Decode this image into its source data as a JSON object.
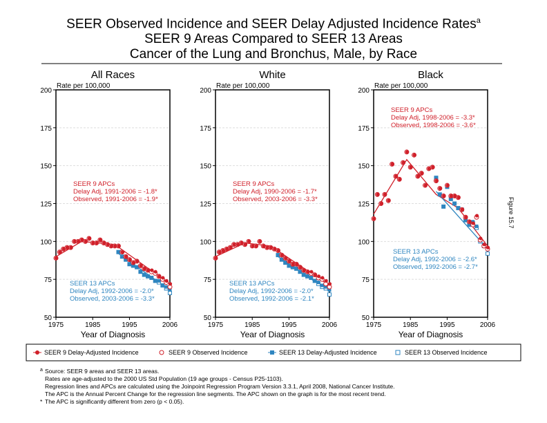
{
  "title": {
    "line1": "SEER Observed Incidence and SEER Delay Adjusted Incidence Rates",
    "sup": "a",
    "line2": "SEER 9 Areas Compared to SEER 13 Areas",
    "line3": "Cancer of the Lung and Bronchus, Male, by Race"
  },
  "figure_label": "Figure 15.7",
  "chart_data": [
    {
      "type": "scatter",
      "title": "All Races",
      "ylabel": "Rate per 100,000",
      "xlabel": "Year of Diagnosis",
      "xlim": [
        1975,
        2006
      ],
      "ylim": [
        50,
        200
      ],
      "xticks": [
        "1975",
        "1985",
        "1995",
        "2006"
      ],
      "yticks": [
        "50",
        "75",
        "100",
        "125",
        "150",
        "175",
        "200"
      ],
      "seer9_delay": [
        89,
        93,
        95,
        96,
        96,
        100,
        100,
        101,
        100,
        102,
        99,
        99,
        101,
        99,
        98,
        97,
        97,
        97,
        93,
        90,
        88,
        86,
        87,
        84,
        82,
        81,
        81,
        80,
        77,
        76,
        74,
        72
      ],
      "seer9_obs": [
        89,
        93,
        95,
        96,
        96,
        100,
        100,
        101,
        100,
        102,
        99,
        99,
        101,
        99,
        98,
        97,
        97,
        97,
        93,
        90,
        88,
        86,
        87,
        84,
        82,
        81,
        80,
        79,
        77,
        75,
        73,
        70
      ],
      "seer13_delay": [
        93,
        90,
        88,
        85,
        84,
        83,
        80,
        78,
        77,
        76,
        74,
        74,
        71,
        70,
        68
      ],
      "seer13_obs": [
        93,
        90,
        88,
        85,
        84,
        83,
        80,
        78,
        77,
        76,
        74,
        73,
        71,
        69,
        66
      ],
      "seer9_trend": [
        [
          1975,
          90
        ],
        [
          1982,
          100
        ],
        [
          1991,
          98
        ],
        [
          2006,
          72
        ]
      ],
      "seer13_trend": [
        [
          1992,
          92
        ],
        [
          2006,
          68
        ]
      ],
      "apc9": {
        "head": "SEER 9 APCs",
        "l1": "Delay Adj, 1991-2006 = -1.8*",
        "l2": "Observed, 1991-2006 = -1.9*"
      },
      "apc13": {
        "head": "SEER 13 APCs",
        "l1": "Delay Adj, 1992-2006 = -2.0*",
        "l2": "Observed, 2003-2006 = -3.3*"
      }
    },
    {
      "type": "scatter",
      "title": "White",
      "ylabel": "Rate per 100,000",
      "xlabel": "Year of Diagnosis",
      "xlim": [
        1975,
        2006
      ],
      "ylim": [
        50,
        200
      ],
      "xticks": [
        "1975",
        "1985",
        "1995",
        "2006"
      ],
      "yticks": [
        "50",
        "75",
        "100",
        "125",
        "150",
        "175",
        "200"
      ],
      "seer9_delay": [
        89,
        93,
        94,
        95,
        96,
        98,
        98,
        99,
        98,
        100,
        97,
        97,
        100,
        97,
        96,
        96,
        95,
        94,
        91,
        89,
        87,
        85,
        85,
        83,
        81,
        80,
        80,
        78,
        77,
        76,
        74,
        72
      ],
      "seer9_obs": [
        89,
        93,
        94,
        95,
        96,
        98,
        98,
        99,
        98,
        100,
        97,
        97,
        100,
        97,
        96,
        96,
        95,
        94,
        91,
        89,
        87,
        85,
        85,
        83,
        81,
        80,
        79,
        78,
        76,
        75,
        72,
        70
      ],
      "seer13_delay": [
        91,
        88,
        86,
        84,
        83,
        82,
        80,
        78,
        77,
        76,
        74,
        73,
        71,
        70,
        68
      ],
      "seer13_obs": [
        91,
        88,
        86,
        84,
        83,
        82,
        80,
        78,
        77,
        76,
        74,
        72,
        70,
        69,
        65
      ],
      "seer9_trend": [
        [
          1975,
          90
        ],
        [
          1983,
          99
        ],
        [
          1990,
          97
        ],
        [
          2006,
          71
        ]
      ],
      "seer13_trend": [
        [
          1992,
          90
        ],
        [
          2006,
          67
        ]
      ],
      "apc9": {
        "head": "SEER 9 APCs",
        "l1": "Delay Adj, 1990-2006 = -1.7*",
        "l2": "Observed, 2003-2006 = -3.3*"
      },
      "apc13": {
        "head": "SEER 13 APCs",
        "l1": "Delay Adj, 1992-2006 = -2.0*",
        "l2": "Observed, 1992-2006 = -2.1*"
      }
    },
    {
      "type": "scatter",
      "title": "Black",
      "ylabel": "Rate per 100,000",
      "xlabel": "Year of Diagnosis",
      "xlim": [
        1975,
        2006
      ],
      "ylim": [
        50,
        200
      ],
      "xticks": [
        "1975",
        "1985",
        "1995",
        "2006"
      ],
      "yticks": [
        "50",
        "75",
        "100",
        "125",
        "150",
        "175",
        "200"
      ],
      "seer9_delay": [
        115,
        131,
        125,
        131,
        127,
        151,
        143,
        141,
        152,
        159,
        149,
        157,
        143,
        145,
        137,
        148,
        149,
        140,
        135,
        130,
        137,
        130,
        130,
        129,
        121,
        116,
        113,
        112,
        117,
        102,
        98,
        96
      ],
      "seer9_obs": [
        115,
        131,
        125,
        131,
        127,
        151,
        143,
        141,
        152,
        159,
        149,
        157,
        143,
        145,
        137,
        148,
        149,
        140,
        135,
        130,
        137,
        130,
        130,
        129,
        121,
        116,
        113,
        111,
        116,
        101,
        97,
        95
      ],
      "seer13_delay": [
        142,
        131,
        123,
        136,
        128,
        125,
        122,
        121,
        114,
        111,
        113,
        110,
        101,
        98,
        95
      ],
      "seer13_obs": [
        142,
        131,
        123,
        136,
        128,
        125,
        122,
        121,
        114,
        111,
        112,
        109,
        100,
        97,
        92
      ],
      "seer9_trend": [
        [
          1975,
          118
        ],
        [
          1984,
          154
        ],
        [
          1992,
          131
        ],
        [
          1998,
          122
        ],
        [
          2006,
          97
        ]
      ],
      "seer13_trend": [
        [
          1992,
          133
        ],
        [
          2006,
          95
        ]
      ],
      "apc9": {
        "head": "SEER 9 APCs",
        "l1": "Delay Adj, 1998-2006 = -3.3*",
        "l2": "Observed, 1998-2006 = -3.6*"
      },
      "apc13": {
        "head": "SEER 13 APCs",
        "l1": "Delay Adj, 1992-2006 = -2.6*",
        "l2": "Observed, 1992-2006 = -2.7*"
      }
    }
  ],
  "legend": [
    "SEER 9 Delay-Adjusted Incidence",
    "SEER 9 Observed Incidence",
    "SEER 13 Delay-Adjusted Incidence",
    "SEER 13 Observed Incidence"
  ],
  "colors": {
    "seer9": "#d0202a",
    "seer13": "#2f86c0"
  },
  "footnotes": {
    "a_mark": "a",
    "l1": "Source: SEER 9 areas and SEER 13 areas.",
    "l2": "Rates are age-adjusted to the 2000 US Std Population (19 age groups - Census P25-1103).",
    "l3": "Regression lines and APCs are calculated using the Joinpoint Regression Program Version 3.3.1, April 2008, National Cancer Institute.",
    "l4": "The APC is the Annual Percent Change for the regression line segments. The APC shown on the graph is for the most recent trend.",
    "star": "*",
    "l5": "The APC is significantly different from zero (p < 0.05)."
  }
}
